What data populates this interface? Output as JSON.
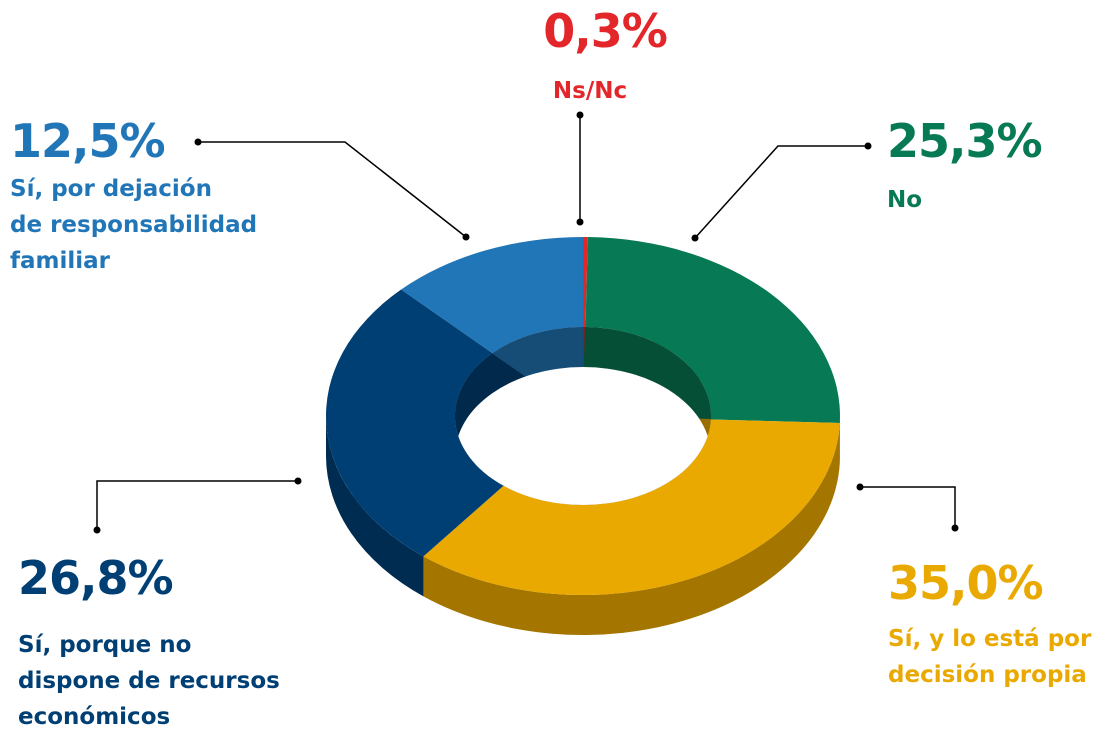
{
  "chart_data": {
    "type": "donut",
    "categories": [
      "Ns/Nc",
      "No",
      "Sí, y lo está por\ndecisión propia",
      "Sí, porque no\ndispone de recursos\neconómicos",
      "Sí, por dejación\nde responsabilidad\nfamiliar"
    ],
    "values": [
      0.3,
      25.3,
      35.0,
      26.8,
      12.5
    ],
    "value_labels": [
      "0,3%",
      "25,3%",
      "35,0%",
      "26,8%",
      "12,5%"
    ],
    "colors": [
      "#e3262a",
      "#077a55",
      "#eaa900",
      "#003f74",
      "#2176b7"
    ]
  }
}
